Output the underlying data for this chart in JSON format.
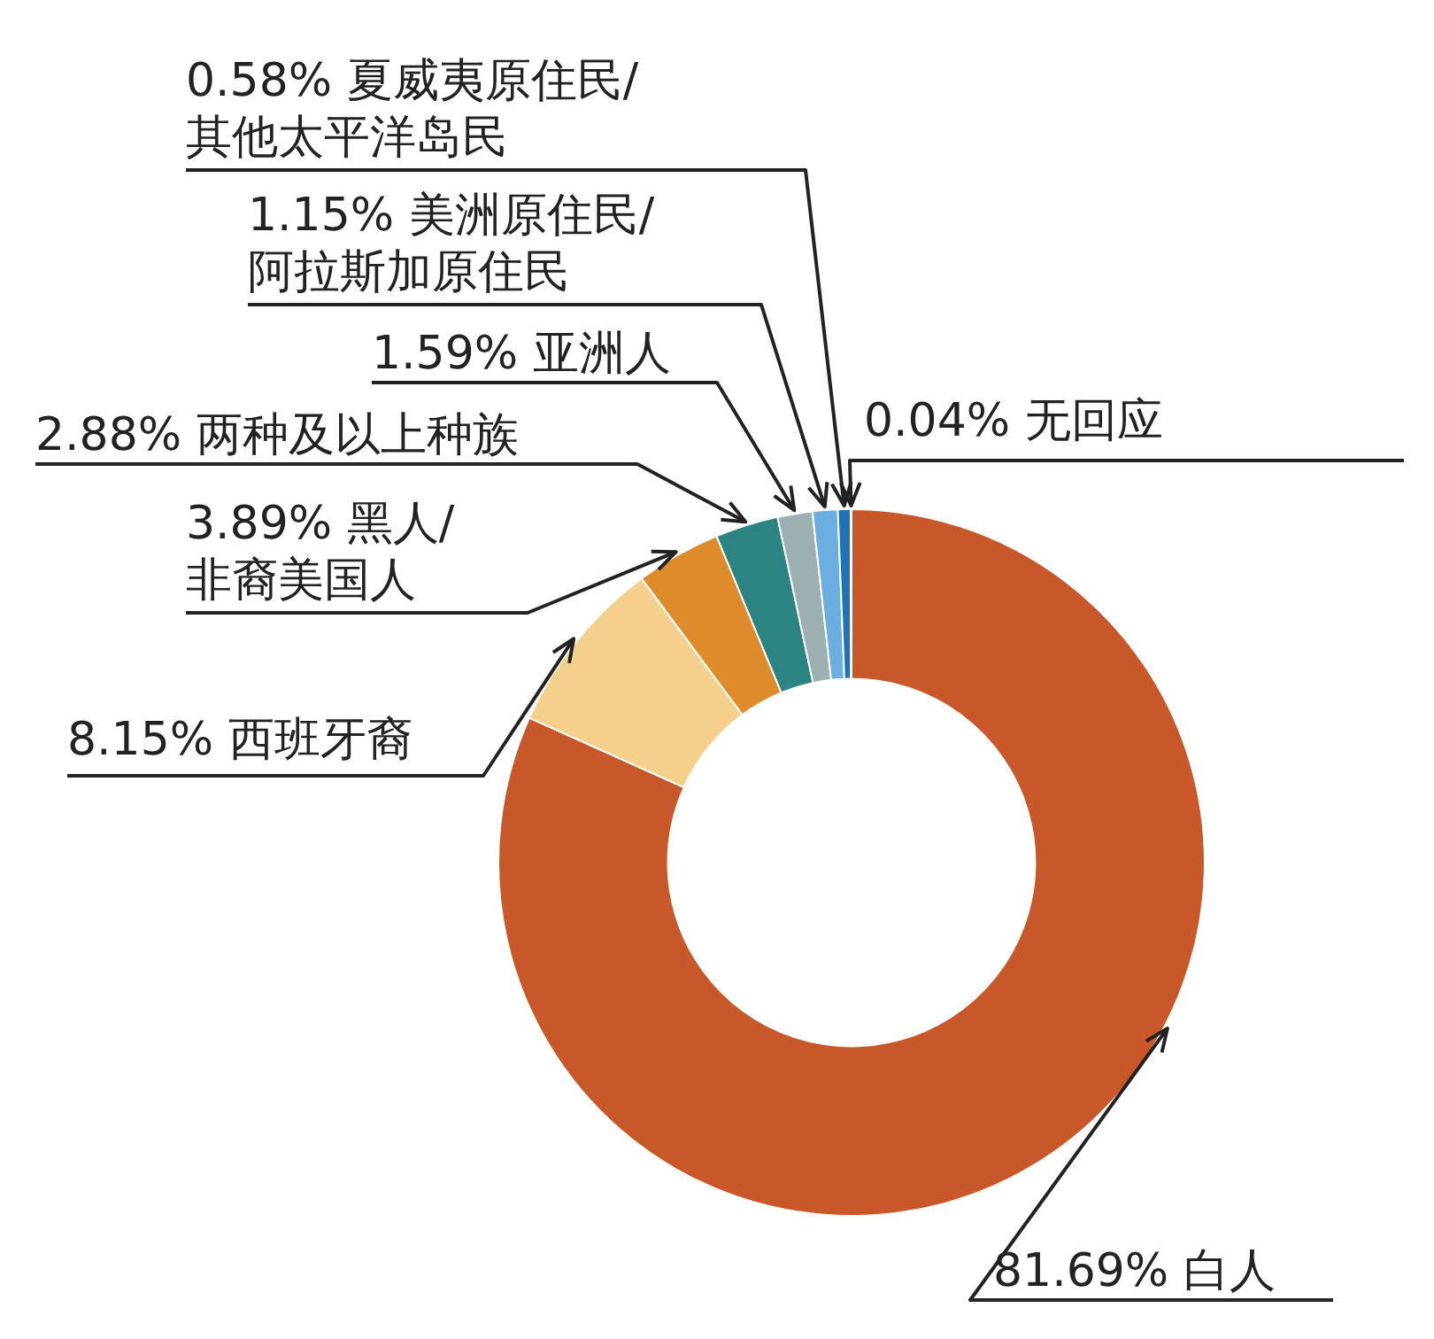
{
  "chart_data": {
    "type": "donut",
    "categories": [
      "白人",
      "西班牙裔",
      "黑人/非裔美国人",
      "两种及以上种族",
      "亚洲人",
      "美洲原住民/阿拉斯加原住民",
      "夏威夷原住民/其他太平洋岛民",
      "无回应"
    ],
    "values": [
      81.69,
      8.15,
      3.89,
      2.88,
      1.59,
      1.15,
      0.58,
      0.04
    ],
    "value_labels": [
      "81.69%",
      "8.15%",
      "3.89%",
      "2.88%",
      "1.59%",
      "1.15%",
      "0.58%",
      "0.04%"
    ],
    "colors": [
      "#c8582a",
      "#f5d08c",
      "#de8b2b",
      "#2b8481",
      "#9cafb1",
      "#6caee0",
      "#1f72b4",
      "#e0708e"
    ],
    "legend": false
  }
}
